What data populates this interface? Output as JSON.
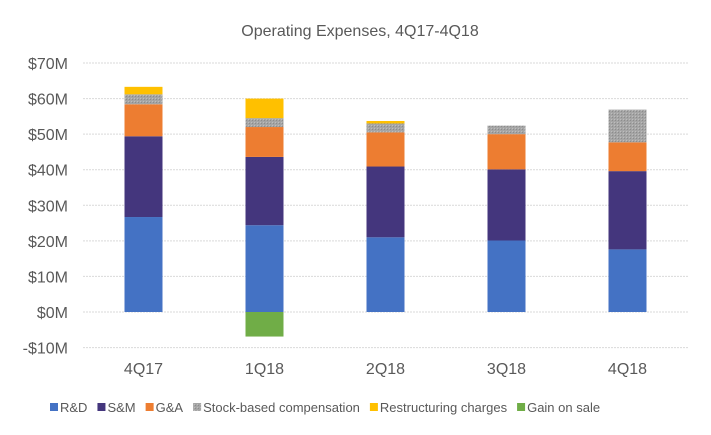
{
  "chart_data": {
    "type": "bar",
    "stacked": true,
    "title": "Operating Expenses, 4Q17-4Q18",
    "xlabel": "",
    "ylabel": "",
    "ylim": [
      -10,
      70
    ],
    "yticks": [
      -10,
      0,
      10,
      20,
      30,
      40,
      50,
      60,
      70
    ],
    "ytick_labels": [
      "-$10M",
      "$0M",
      "$10M",
      "$20M",
      "$30M",
      "$40M",
      "$50M",
      "$60M",
      "$70M"
    ],
    "grid": true,
    "legend_position": "bottom",
    "categories": [
      "4Q17",
      "1Q18",
      "2Q18",
      "3Q18",
      "4Q18"
    ],
    "series": [
      {
        "name": "R&D",
        "color": "#4472C4",
        "values": [
          26.7,
          24.4,
          21.0,
          20.1,
          17.6
        ]
      },
      {
        "name": "S&M",
        "color": "#44367D",
        "values": [
          22.7,
          19.2,
          19.9,
          20.0,
          22.0
        ]
      },
      {
        "name": "G&A",
        "color": "#ED7D31",
        "values": [
          9.0,
          8.4,
          9.6,
          9.9,
          8.1
        ]
      },
      {
        "name": "Stock-based compensation",
        "color": "#A5A5A5",
        "values": [
          2.8,
          2.5,
          2.5,
          2.4,
          9.2
        ]
      },
      {
        "name": "Restructuring charges",
        "color": "#FFC000",
        "values": [
          2.1,
          5.5,
          0.7,
          0,
          0
        ]
      },
      {
        "name": "Gain on sale",
        "color": "#70AD47",
        "values": [
          0,
          -6.9,
          0,
          0,
          0
        ]
      }
    ]
  }
}
